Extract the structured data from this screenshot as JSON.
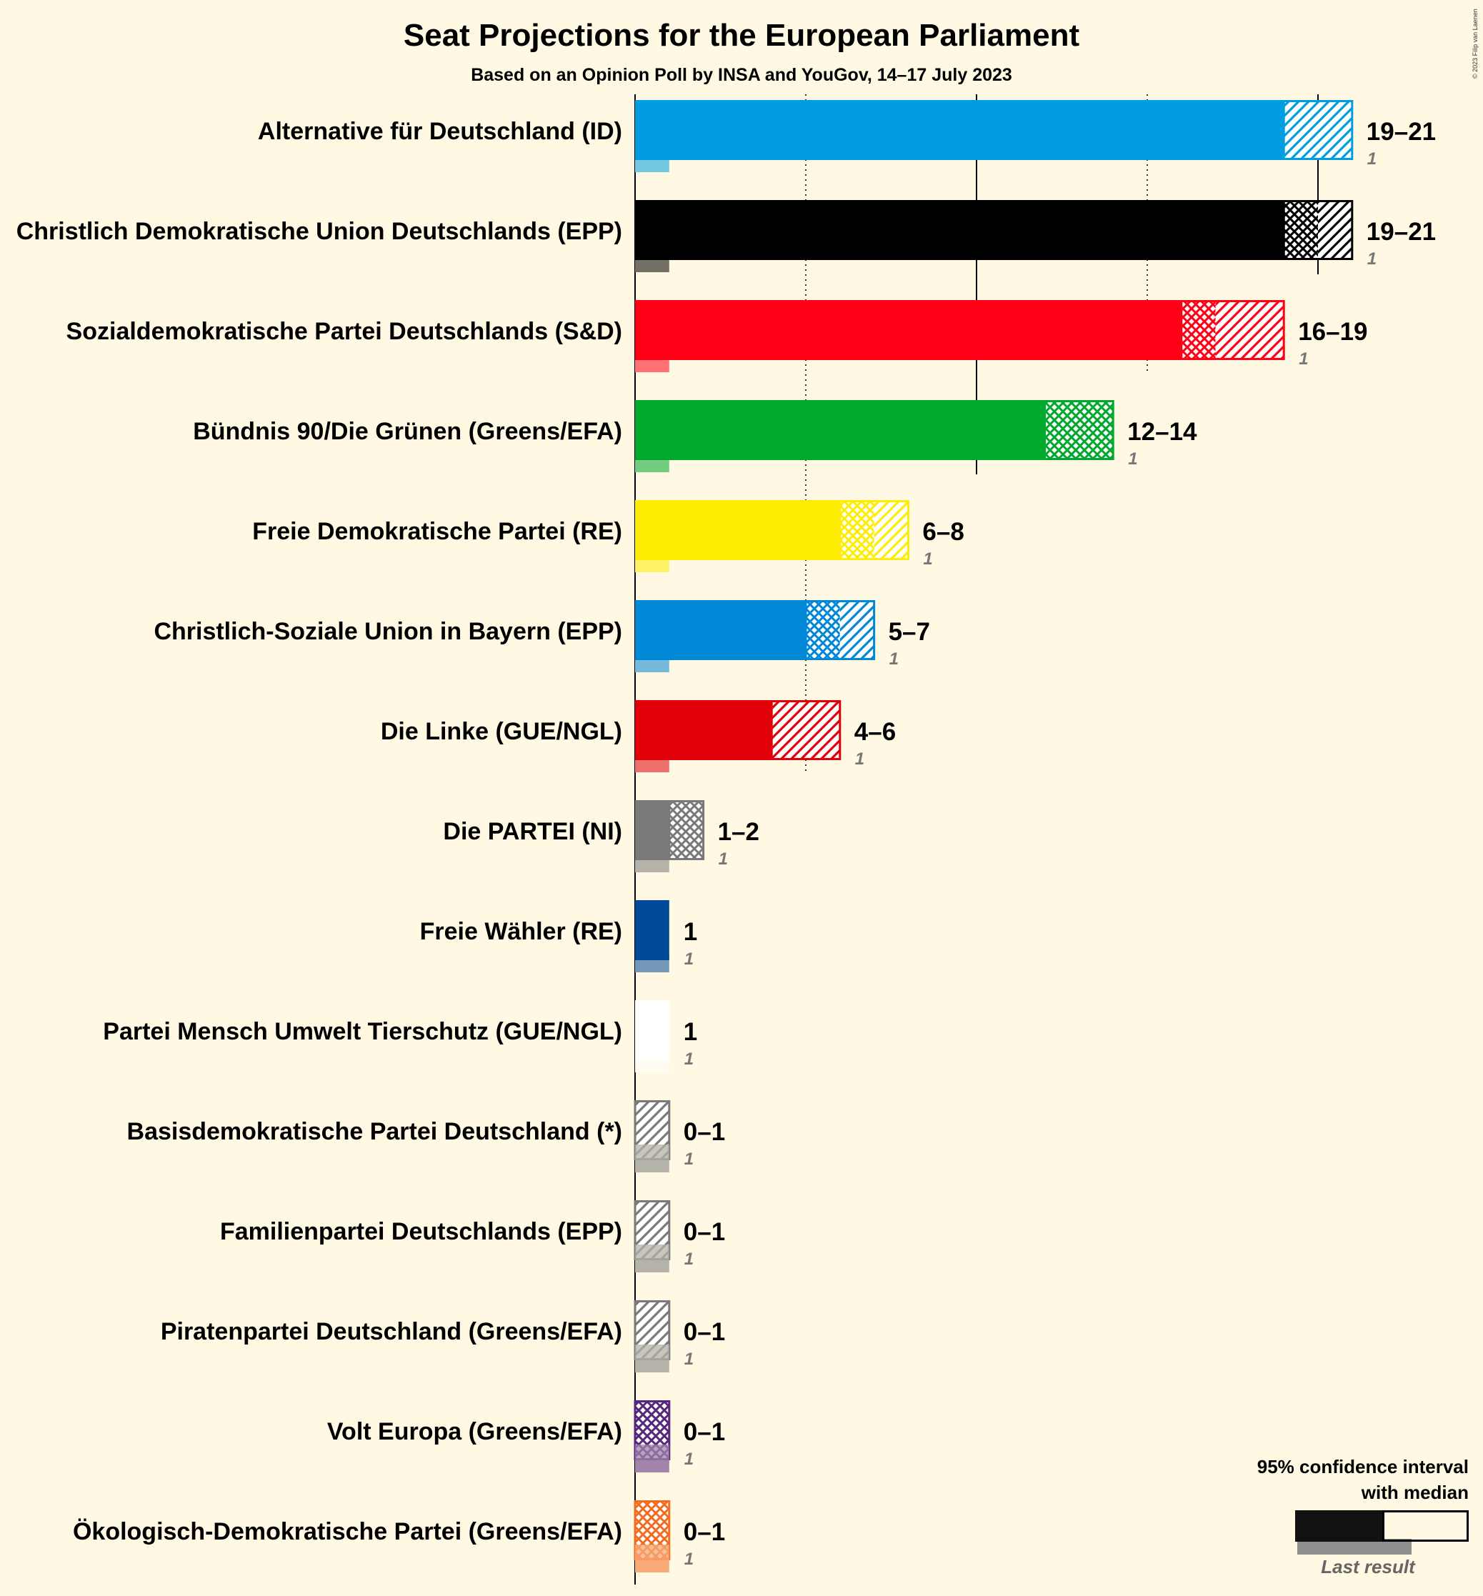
{
  "chart_data": {
    "type": "bar",
    "orientation": "horizontal",
    "title": "Seat Projections for the European Parliament",
    "subtitle": "Based on an Opinion Poll by INSA and YouGov, 14–17 July 2023",
    "copyright": "© 2023 Filip van Laenen",
    "xlim": [
      0,
      21
    ],
    "gridlines": [
      5,
      10,
      15,
      20
    ],
    "series": [
      {
        "party": "Alternative für Deutschland (ID)",
        "color": "#009ee0",
        "low": 19,
        "median": 19,
        "high": 21,
        "last": 1,
        "range_label": "19–21",
        "last_label": "1"
      },
      {
        "party": "Christlich Demokratische Union Deutschlands (EPP)",
        "color": "#000000",
        "low": 19,
        "median": 20,
        "high": 21,
        "last": 1,
        "range_label": "19–21",
        "last_label": "1"
      },
      {
        "party": "Sozialdemokratische Partei Deutschlands (S&D)",
        "color": "#ff0016",
        "low": 16,
        "median": 17,
        "high": 19,
        "last": 1,
        "range_label": "16–19",
        "last_label": "1"
      },
      {
        "party": "Bündnis 90/Die Grünen (Greens/EFA)",
        "color": "#00a82d",
        "low": 12,
        "median": 14,
        "high": 14,
        "last": 1,
        "range_label": "12–14",
        "last_label": "1"
      },
      {
        "party": "Freie Demokratische Partei (RE)",
        "color": "#ffed00",
        "low": 6,
        "median": 7,
        "high": 8,
        "last": 1,
        "range_label": "6–8",
        "last_label": "1"
      },
      {
        "party": "Christlich-Soziale Union in Bayern (EPP)",
        "color": "#0088d7",
        "low": 5,
        "median": 6,
        "high": 7,
        "last": 1,
        "range_label": "5–7",
        "last_label": "1"
      },
      {
        "party": "Die Linke (GUE/NGL)",
        "color": "#e10009",
        "low": 4,
        "median": 4,
        "high": 6,
        "last": 1,
        "range_label": "4–6",
        "last_label": "1"
      },
      {
        "party": "Die PARTEI (NI)",
        "color": "#797979",
        "low": 1,
        "median": 2,
        "high": 2,
        "last": 1,
        "range_label": "1–2",
        "last_label": "1"
      },
      {
        "party": "Freie Wähler (RE)",
        "color": "#004a99",
        "low": 1,
        "median": 1,
        "high": 1,
        "last": 1,
        "range_label": "1",
        "last_label": "1"
      },
      {
        "party": "Partei Mensch Umwelt Tierschutz (GUE/NGL)",
        "color": "#ffffff",
        "low": 1,
        "median": 1,
        "high": 1,
        "last": 1,
        "range_label": "1",
        "last_label": "1"
      },
      {
        "party": "Basisdemokratische Partei Deutschland (*)",
        "color": "#797979",
        "low": 0,
        "median": 0,
        "high": 1,
        "last": 1,
        "range_label": "0–1",
        "last_label": "1"
      },
      {
        "party": "Familienpartei Deutschlands (EPP)",
        "color": "#797979",
        "low": 0,
        "median": 0,
        "high": 1,
        "last": 1,
        "range_label": "0–1",
        "last_label": "1"
      },
      {
        "party": "Piratenpartei Deutschland (Greens/EFA)",
        "color": "#797979",
        "low": 0,
        "median": 0,
        "high": 1,
        "last": 1,
        "range_label": "0–1",
        "last_label": "1"
      },
      {
        "party": "Volt Europa (Greens/EFA)",
        "color": "#57267c",
        "low": 0,
        "median": 1,
        "high": 1,
        "last": 1,
        "range_label": "0–1",
        "last_label": "1"
      },
      {
        "party": "Ökologisch-Demokratische Partei (Greens/EFA)",
        "color": "#f36c21",
        "low": 0,
        "median": 1,
        "high": 1,
        "last": 1,
        "range_label": "0–1",
        "last_label": "1"
      }
    ],
    "legend": {
      "line1": "95% confidence interval",
      "line2": "with median",
      "last_result": "Last result",
      "placement": "bottom-right"
    }
  }
}
